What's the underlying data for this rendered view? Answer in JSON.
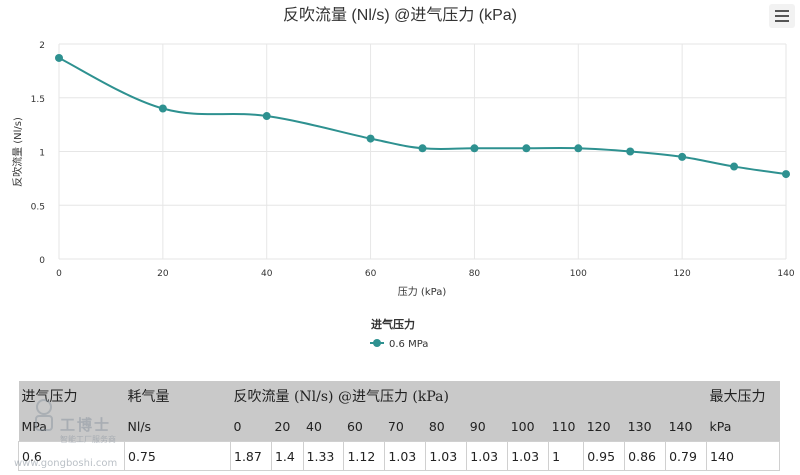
{
  "chart_data": {
    "type": "line",
    "title": "反吹流量 (Nl/s) @进气压力 (kPa)",
    "xlabel": "压力 (kPa)",
    "ylabel": "反吹流量 (Nl/s)",
    "xlim": [
      0,
      140
    ],
    "ylim": [
      0,
      2
    ],
    "x_ticks": [
      0,
      20,
      40,
      60,
      80,
      100,
      120,
      140
    ],
    "y_ticks": [
      0,
      0.5,
      1,
      1.5,
      2
    ],
    "y_tick_labels": [
      "0",
      "0.5",
      "1",
      "1.5",
      "2"
    ],
    "grid": true,
    "legend_title": "进气压力",
    "legend_position": "bottom-center",
    "series": [
      {
        "name": "0.6 MPa",
        "color": "#2e9190",
        "x": [
          0,
          20,
          40,
          60,
          70,
          80,
          90,
          100,
          110,
          120,
          130,
          140
        ],
        "values": [
          1.87,
          1.4,
          1.33,
          1.12,
          1.03,
          1.03,
          1.03,
          1.03,
          1,
          0.95,
          0.86,
          0.79
        ]
      }
    ]
  },
  "table": {
    "header1": {
      "inlet_pressure": "进气压力",
      "consumption": "耗气量",
      "purge_flow": "反吹流量 (Nl/s) @进气压力 (kPa)",
      "max_pressure": "最大压力"
    },
    "header2": {
      "inlet_unit": "MPa",
      "consumption_unit": "Nl/s",
      "pressures": [
        "0",
        "20",
        "40",
        "60",
        "70",
        "80",
        "90",
        "100",
        "110",
        "120",
        "130",
        "140"
      ],
      "max_unit": "kPa"
    },
    "row": {
      "inlet_pressure": "0.6",
      "consumption": "0.75",
      "flows": [
        "1.87",
        "1.4",
        "1.33",
        "1.12",
        "1.03",
        "1.03",
        "1.03",
        "1.03",
        "1",
        "0.95",
        "0.86",
        "0.79"
      ],
      "max_pressure": "140"
    }
  },
  "watermark": {
    "brand": "工博士",
    "slogan": "智能工厂服务商",
    "site": "www.gongboshi.com"
  },
  "menu": {
    "icon": "hamburger-menu-icon"
  }
}
